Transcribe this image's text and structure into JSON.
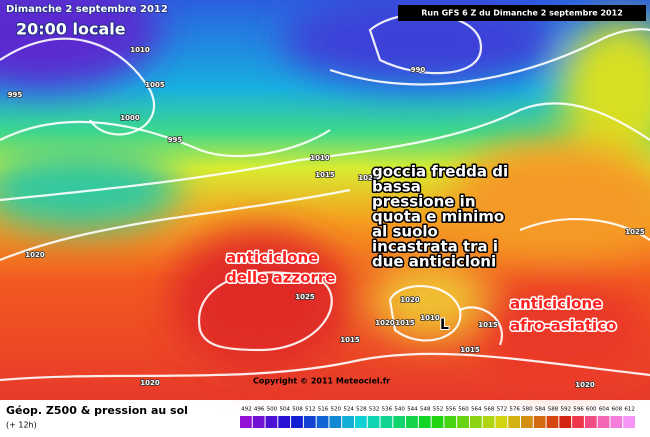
{
  "header": {
    "date": "Dimanche 2 septembre 2012",
    "time": "20:00 locale",
    "run": "Run GFS 6 Z du Dimanche 2 septembre 2012"
  },
  "annotations": [
    {
      "lines": [
        "goccia fredda di",
        "bassa",
        "pressione in",
        "quota e minimo",
        "al suolo",
        "incastrata tra i",
        "due anticicloni"
      ]
    },
    {
      "lines": [
        "anticiclone",
        "delle azzorre"
      ]
    },
    {
      "lines": [
        "anticiclone",
        "afro-asiatico"
      ]
    }
  ],
  "isobar_labels": [
    "1010",
    "1005",
    "995",
    "1000",
    "995",
    "990",
    "1010",
    "1015",
    "1020",
    "1025",
    "1020",
    "1025",
    "1020",
    "1020",
    "1015",
    "1010",
    "1015",
    "1015",
    "1015",
    "1020",
    "1020"
  ],
  "low_marker": "L",
  "copyright": "Copyright © 2011 Meteociel.fr",
  "legend": {
    "title": "Géop. Z500 & pression au sol",
    "subtitle": "(+ 12h)",
    "scale": [
      492,
      496,
      500,
      504,
      508,
      512,
      516,
      520,
      524,
      528,
      532,
      536,
      540,
      544,
      548,
      552,
      556,
      560,
      564,
      568,
      572,
      576,
      580,
      584,
      588,
      592,
      596,
      600,
      604,
      608,
      612
    ]
  }
}
